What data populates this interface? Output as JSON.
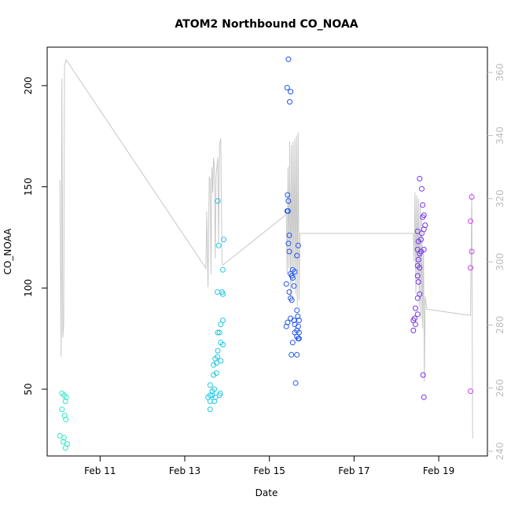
{
  "chart_data": {
    "type": "scatter",
    "title": "ATOM2 Northbound CO_NOAA",
    "xlabel": "Date",
    "ylabel": "CO_NOAA",
    "x_ticks": [
      "Feb 11",
      "Feb 13",
      "Feb 15",
      "Feb 17",
      "Feb 19"
    ],
    "x_tick_days": [
      11,
      13,
      15,
      17,
      19
    ],
    "xlim": [
      9.75,
      20.15
    ],
    "y_ticks": [
      50,
      100,
      150,
      200
    ],
    "ylim": [
      17,
      219
    ],
    "y2_ticks": [
      240,
      260,
      280,
      300,
      320,
      340,
      360
    ],
    "y2lim": [
      238.5,
      368
    ],
    "grid": false,
    "legend": "none",
    "colors": {
      "frame": "#000000",
      "right_axis": "#bdbdbd",
      "line": "#c8c8c8"
    },
    "series": [
      {
        "color": "#2ee8c8",
        "points": [
          [
            10.1,
            48
          ],
          [
            10.15,
            47
          ],
          [
            10.2,
            46
          ],
          [
            10.18,
            44
          ],
          [
            10.1,
            40
          ],
          [
            10.16,
            37
          ],
          [
            10.19,
            35
          ],
          [
            10.05,
            27
          ],
          [
            10.15,
            26
          ],
          [
            10.13,
            24
          ],
          [
            10.22,
            23
          ],
          [
            10.18,
            21
          ]
        ]
      },
      {
        "color": "#22c8e0",
        "points": [
          [
            13.78,
            143
          ],
          [
            13.92,
            124
          ],
          [
            13.8,
            121
          ],
          [
            13.9,
            109
          ],
          [
            13.77,
            98
          ],
          [
            13.88,
            98
          ],
          [
            13.9,
            97
          ],
          [
            13.9,
            84
          ],
          [
            13.85,
            82
          ],
          [
            13.78,
            78
          ],
          [
            13.82,
            78
          ],
          [
            13.85,
            73
          ],
          [
            13.9,
            72
          ],
          [
            13.78,
            69
          ],
          [
            13.77,
            66
          ],
          [
            13.72,
            65
          ],
          [
            13.75,
            63
          ],
          [
            13.85,
            64
          ],
          [
            13.68,
            62
          ],
          [
            13.75,
            58
          ],
          [
            13.68,
            57
          ],
          [
            13.6,
            52
          ],
          [
            13.7,
            50
          ],
          [
            13.65,
            49
          ],
          [
            13.6,
            47
          ],
          [
            13.65,
            47
          ],
          [
            13.72,
            46
          ],
          [
            13.82,
            47
          ],
          [
            13.84,
            48
          ],
          [
            13.55,
            46
          ],
          [
            13.6,
            44
          ],
          [
            13.7,
            44
          ],
          [
            13.6,
            40
          ]
        ]
      },
      {
        "color": "#2255ee",
        "points": [
          [
            15.45,
            213
          ],
          [
            15.42,
            199
          ],
          [
            15.5,
            197
          ],
          [
            15.48,
            192
          ],
          [
            15.43,
            146
          ],
          [
            15.45,
            143
          ],
          [
            15.42,
            138
          ],
          [
            15.44,
            138
          ],
          [
            15.47,
            126
          ],
          [
            15.45,
            122
          ],
          [
            15.68,
            121
          ],
          [
            15.47,
            118
          ],
          [
            15.65,
            116
          ],
          [
            15.55,
            109
          ],
          [
            15.6,
            108
          ],
          [
            15.5,
            107
          ],
          [
            15.53,
            106
          ],
          [
            15.55,
            105
          ],
          [
            15.4,
            102
          ],
          [
            15.58,
            101
          ],
          [
            15.47,
            98
          ],
          [
            15.5,
            95
          ],
          [
            15.53,
            94
          ],
          [
            15.65,
            89
          ],
          [
            15.67,
            86
          ],
          [
            15.5,
            85
          ],
          [
            15.58,
            84
          ],
          [
            15.7,
            84
          ],
          [
            15.43,
            83
          ],
          [
            15.6,
            82
          ],
          [
            15.68,
            81
          ],
          [
            15.4,
            81
          ],
          [
            15.65,
            79
          ],
          [
            15.7,
            78
          ],
          [
            15.6,
            78
          ],
          [
            15.65,
            76
          ],
          [
            15.68,
            75
          ],
          [
            15.7,
            75
          ],
          [
            15.55,
            73
          ],
          [
            15.52,
            67
          ],
          [
            15.65,
            67
          ],
          [
            15.62,
            53
          ]
        ]
      },
      {
        "color": "#7733ee",
        "points": [
          [
            18.55,
            154
          ],
          [
            18.6,
            149
          ],
          [
            18.62,
            141
          ],
          [
            18.65,
            136
          ],
          [
            18.62,
            135
          ],
          [
            18.68,
            131
          ],
          [
            18.65,
            129
          ],
          [
            18.5,
            128
          ],
          [
            18.6,
            127
          ],
          [
            18.58,
            124
          ],
          [
            18.52,
            123
          ],
          [
            18.5,
            119
          ],
          [
            18.65,
            119
          ],
          [
            18.58,
            118
          ],
          [
            18.55,
            117
          ],
          [
            18.52,
            114
          ],
          [
            18.5,
            111
          ],
          [
            18.55,
            110
          ],
          [
            18.5,
            106
          ],
          [
            18.52,
            103
          ],
          [
            18.55,
            97
          ],
          [
            18.5,
            95
          ],
          [
            18.45,
            90
          ],
          [
            18.5,
            87
          ],
          [
            18.43,
            85
          ],
          [
            18.4,
            84
          ],
          [
            18.45,
            82
          ],
          [
            18.4,
            79
          ],
          [
            18.63,
            57
          ],
          [
            18.65,
            46
          ]
        ]
      },
      {
        "color": "#cc44ee",
        "points": [
          [
            19.78,
            145
          ],
          [
            19.75,
            133
          ],
          [
            19.78,
            118
          ],
          [
            19.75,
            110
          ],
          [
            19.75,
            49
          ]
        ]
      }
    ],
    "right_axis_line": {
      "color": "#c8c8c8",
      "points": [
        [
          10.05,
          326
        ],
        [
          10.08,
          270
        ],
        [
          10.1,
          358
        ],
        [
          10.12,
          276
        ],
        [
          10.14,
          280
        ],
        [
          10.16,
          362
        ],
        [
          10.2,
          364
        ],
        [
          13.5,
          298
        ],
        [
          13.52,
          316
        ],
        [
          13.55,
          292
        ],
        [
          13.58,
          327
        ],
        [
          13.6,
          326
        ],
        [
          13.62,
          296
        ],
        [
          13.64,
          330
        ],
        [
          13.66,
          322
        ],
        [
          13.68,
          333
        ],
        [
          13.7,
          330
        ],
        [
          13.72,
          301
        ],
        [
          13.74,
          327
        ],
        [
          13.76,
          330
        ],
        [
          13.78,
          333
        ],
        [
          13.8,
          306
        ],
        [
          13.82,
          337
        ],
        [
          13.85,
          339
        ],
        [
          13.88,
          300
        ],
        [
          13.9,
          299
        ],
        [
          15.4,
          315
        ],
        [
          15.42,
          296
        ],
        [
          15.44,
          330
        ],
        [
          15.46,
          298
        ],
        [
          15.48,
          338
        ],
        [
          15.5,
          288
        ],
        [
          15.52,
          337
        ],
        [
          15.54,
          292
        ],
        [
          15.56,
          338
        ],
        [
          15.58,
          295
        ],
        [
          15.6,
          339
        ],
        [
          15.62,
          290
        ],
        [
          15.64,
          340
        ],
        [
          15.66,
          286
        ],
        [
          15.68,
          341
        ],
        [
          15.7,
          288
        ],
        [
          15.72,
          309
        ],
        [
          18.4,
          309
        ],
        [
          18.42,
          300
        ],
        [
          18.44,
          322
        ],
        [
          18.46,
          290
        ],
        [
          18.48,
          321
        ],
        [
          18.5,
          294
        ],
        [
          18.52,
          320
        ],
        [
          18.54,
          286
        ],
        [
          18.56,
          318
        ],
        [
          18.58,
          282
        ],
        [
          18.6,
          315
        ],
        [
          18.62,
          279
        ],
        [
          18.64,
          304
        ],
        [
          18.66,
          262
        ],
        [
          18.68,
          289
        ],
        [
          18.72,
          285
        ],
        [
          19.75,
          283
        ],
        [
          19.78,
          322
        ],
        [
          19.8,
          244
        ]
      ]
    }
  }
}
